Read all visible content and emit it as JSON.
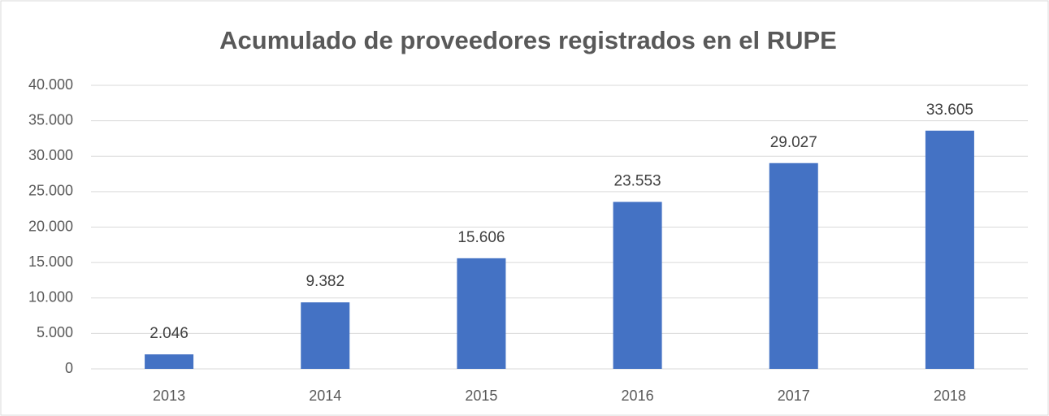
{
  "chart_data": {
    "type": "bar",
    "title": "Acumulado de proveedores registrados en el RUPE",
    "categories": [
      "2013",
      "2014",
      "2015",
      "2016",
      "2017",
      "2018"
    ],
    "values": [
      2046,
      9382,
      15606,
      23553,
      29027,
      33605
    ],
    "value_labels": [
      "2.046",
      "9.382",
      "15.606",
      "23.553",
      "29.027",
      "33.605"
    ],
    "color": "#4472c4",
    "ylim": [
      0,
      40000
    ],
    "yticks": [
      0,
      {
        "value": 5000,
        "label": "5.000"
      },
      {
        "value": 10000,
        "label": "10.000"
      },
      {
        "value": 15000,
        "label": "15.000"
      },
      {
        "value": 20000,
        "label": "20.000"
      },
      {
        "value": 25000,
        "label": "25.000"
      },
      {
        "value": 30000,
        "label": "30.000"
      },
      {
        "value": 35000,
        "label": "35.000"
      },
      {
        "value": 40000,
        "label": "40.000"
      }
    ],
    "grid": true
  }
}
